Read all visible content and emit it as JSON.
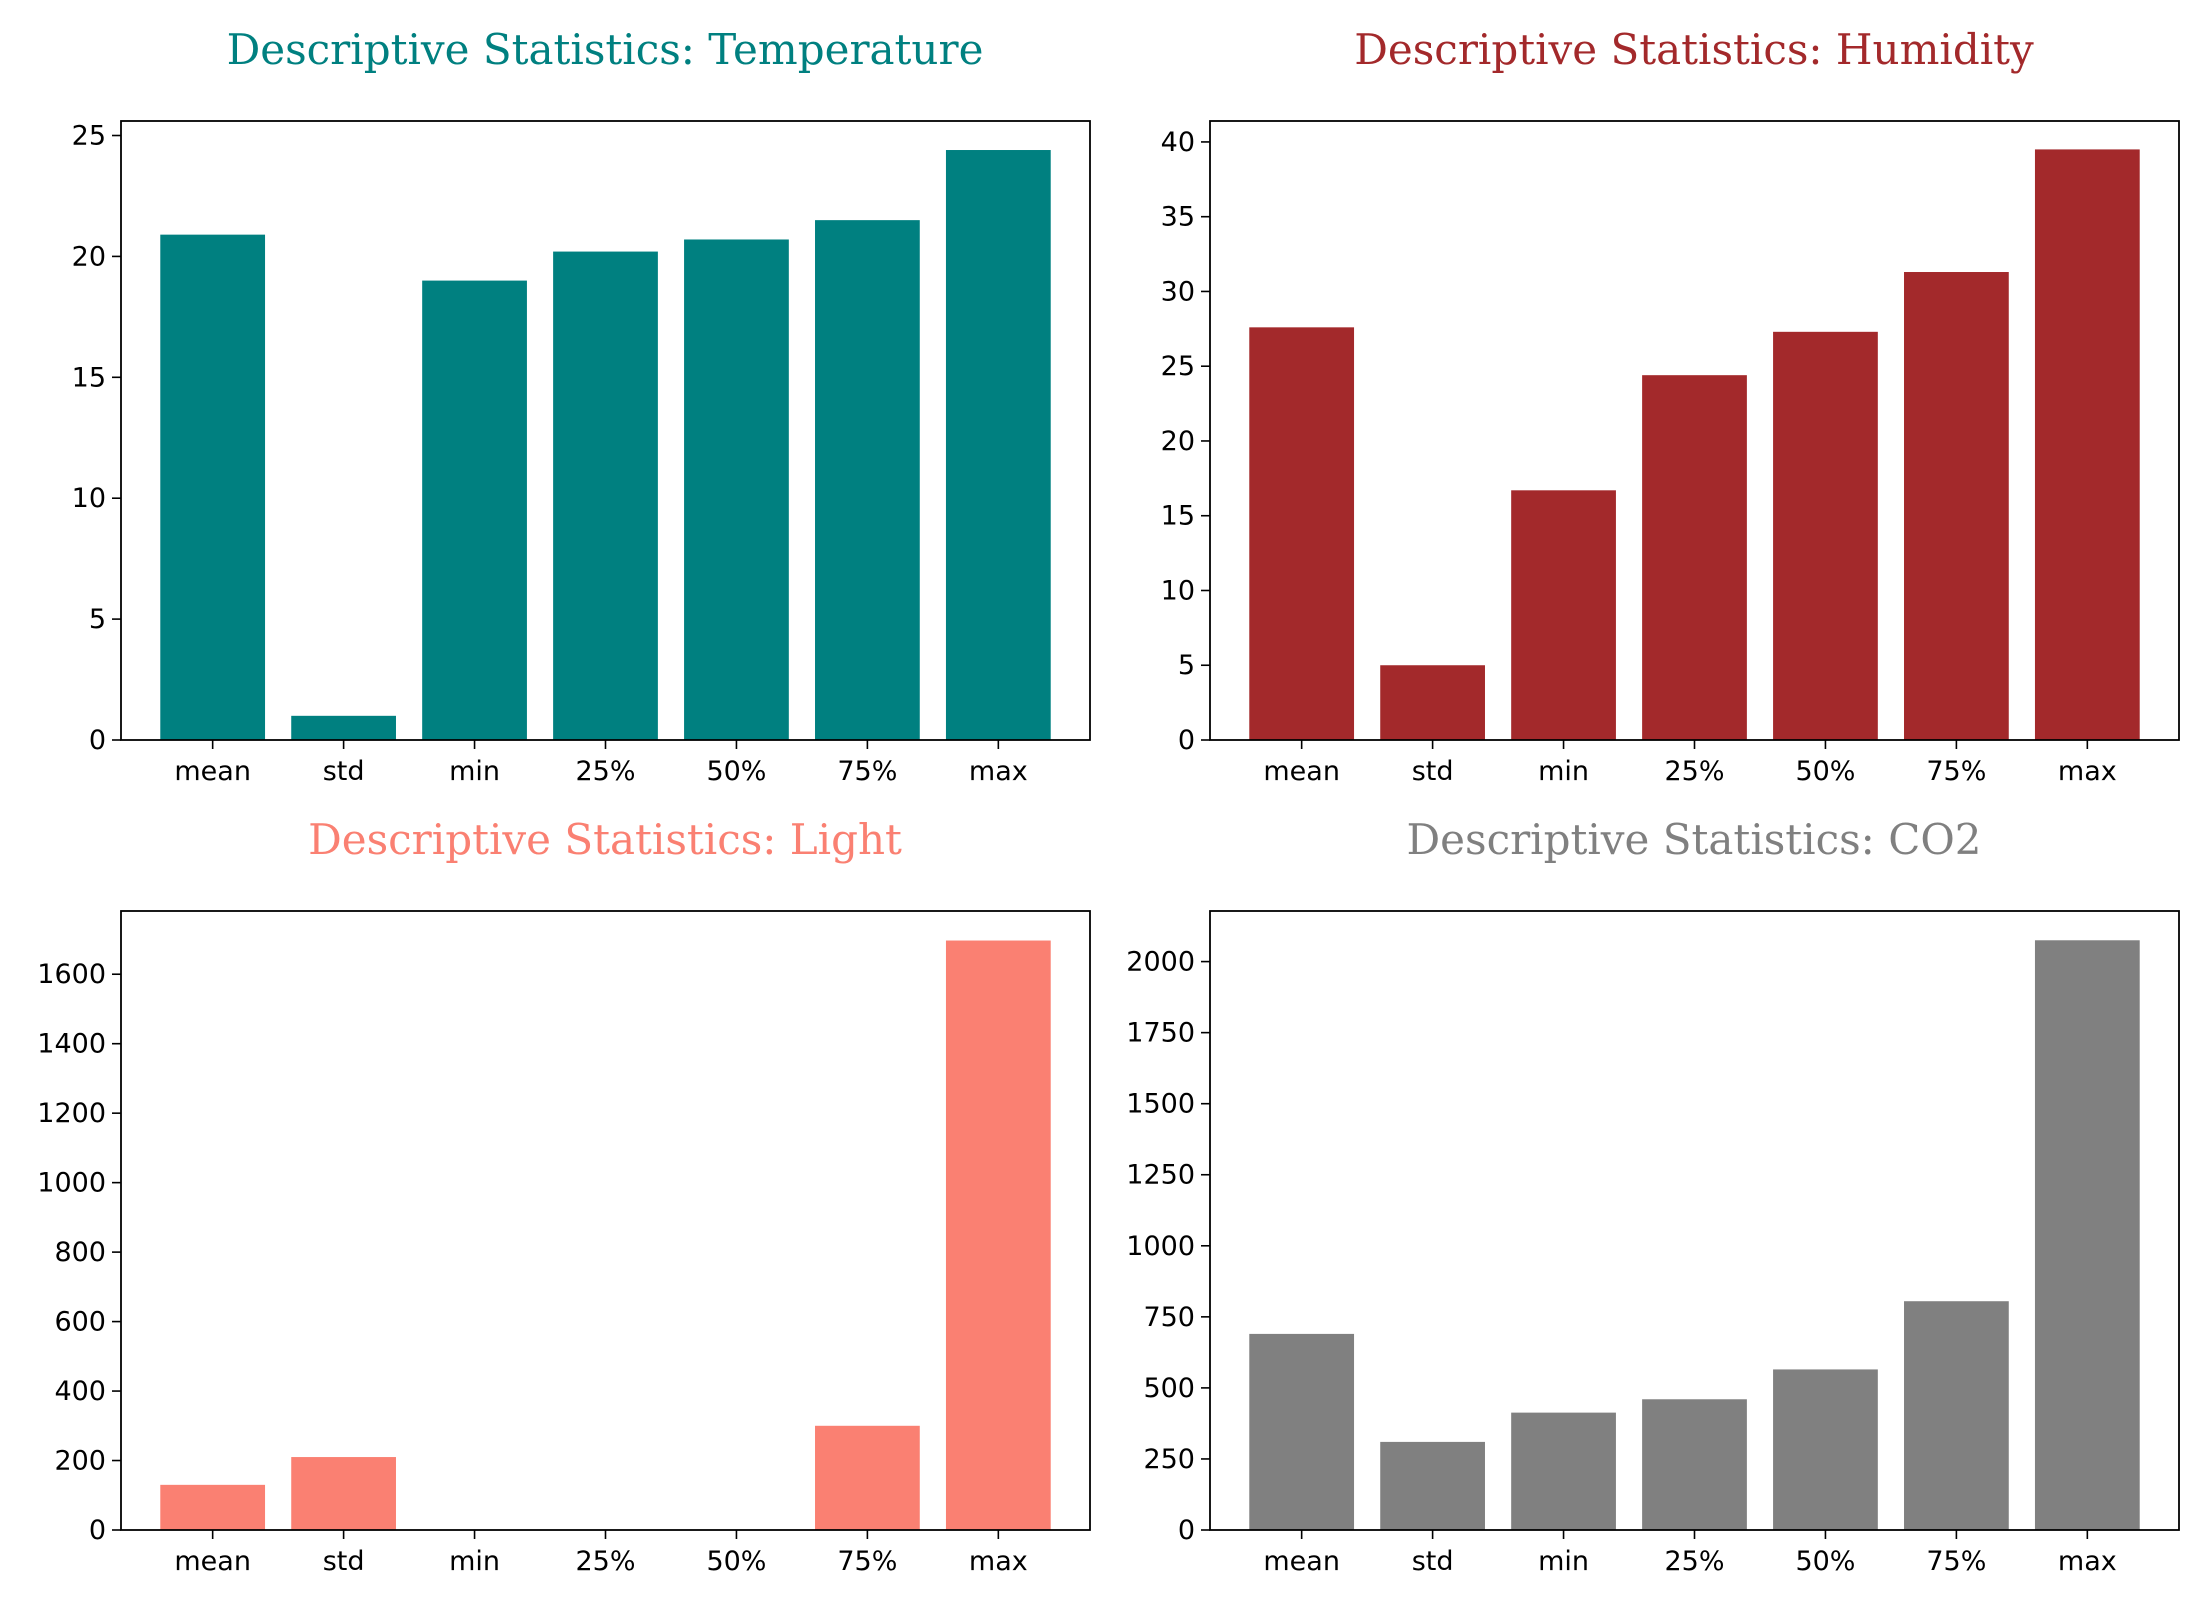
{
  "chart_data": [
    {
      "type": "bar",
      "title": "Descriptive Statistics: Temperature",
      "color": "#008080",
      "categories": [
        "mean",
        "std",
        "min",
        "25%",
        "50%",
        "75%",
        "max"
      ],
      "values": [
        20.9,
        1.0,
        19.0,
        20.2,
        20.7,
        21.5,
        24.4
      ],
      "ylim": [
        0,
        25.6
      ],
      "yticks": [
        0,
        5,
        10,
        15,
        20,
        25
      ]
    },
    {
      "type": "bar",
      "title": "Descriptive Statistics: Humidity",
      "color": "#A3292B",
      "categories": [
        "mean",
        "std",
        "min",
        "25%",
        "50%",
        "75%",
        "max"
      ],
      "values": [
        27.6,
        5.0,
        16.7,
        24.4,
        27.3,
        31.3,
        39.5
      ],
      "ylim": [
        0,
        41.4
      ],
      "yticks": [
        0,
        5,
        10,
        15,
        20,
        25,
        30,
        35,
        40
      ]
    },
    {
      "type": "bar",
      "title": "Descriptive Statistics: Light",
      "color": "#FA8072",
      "categories": [
        "mean",
        "std",
        "min",
        "25%",
        "50%",
        "75%",
        "max"
      ],
      "values": [
        130,
        210,
        0,
        0,
        0,
        300,
        1697
      ],
      "ylim": [
        0,
        1782
      ],
      "yticks": [
        0,
        200,
        400,
        600,
        800,
        1000,
        1200,
        1400,
        1600
      ]
    },
    {
      "type": "bar",
      "title": "Descriptive Statistics: CO2",
      "color": "#808080",
      "categories": [
        "mean",
        "std",
        "min",
        "25%",
        "50%",
        "75%",
        "max"
      ],
      "values": [
        690,
        310,
        413,
        460,
        565,
        805,
        2075
      ],
      "ylim": [
        0,
        2178
      ],
      "yticks": [
        0,
        250,
        500,
        750,
        1000,
        1250,
        1500,
        1750,
        2000
      ]
    }
  ]
}
